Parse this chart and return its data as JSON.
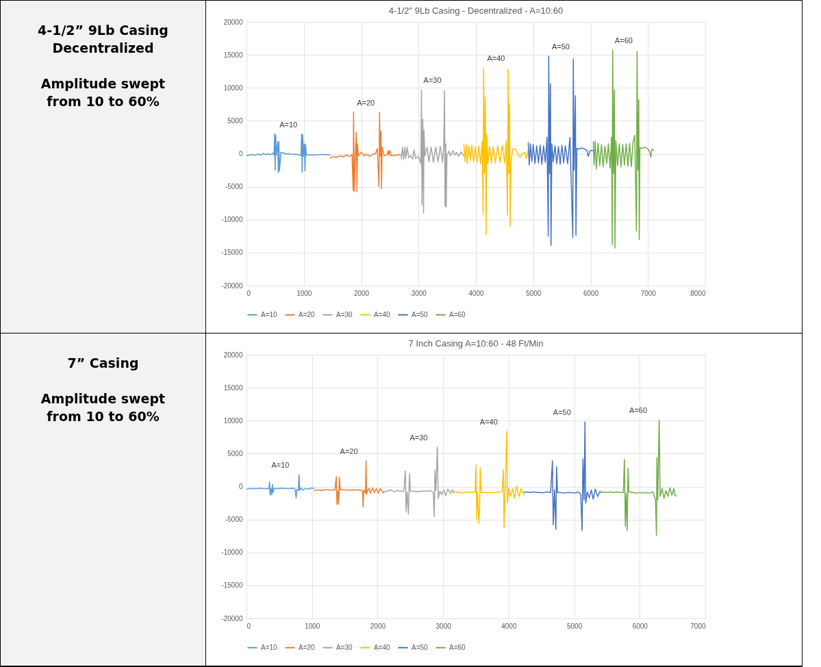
{
  "chart_data": [
    {
      "type": "other",
      "title": "4-1/2” 9Lb Casing",
      "subtitle": "Decentralized",
      "annotations": [
        "Amplitude swept from 10 to 60%"
      ]
    },
    {
      "type": "line",
      "title": "4-1/2\" 9Lb Casing - Decentralized - A=10:60",
      "xlim": [
        0,
        8000
      ],
      "xticks": [
        0,
        1000,
        2000,
        3000,
        4000,
        5000,
        6000,
        7000,
        8000
      ],
      "ylim": [
        -20000,
        20000
      ],
      "yticks": [
        -20000,
        -15000,
        -10000,
        -5000,
        0,
        5000,
        10000,
        15000,
        20000
      ],
      "grid": true,
      "legend": "bottom",
      "series": [
        {
          "name": "A=10",
          "color": "#5b9bd5",
          "x": [
            0,
            50,
            100,
            150,
            200,
            250,
            290,
            330,
            380,
            420,
            460,
            480,
            490,
            500,
            510,
            520,
            545,
            555,
            565,
            575,
            600,
            650,
            700,
            750,
            800,
            850,
            900,
            950,
            960,
            970,
            980,
            995,
            1010,
            1020,
            1030,
            1045,
            1100,
            1200,
            1300,
            1400,
            1460
          ],
          "values": [
            -300,
            -200,
            -100,
            -250,
            -50,
            -200,
            50,
            -150,
            0,
            -150,
            100,
            -200,
            3000,
            -2500,
            2800,
            -200,
            1800,
            -2900,
            1900,
            -2600,
            200,
            100,
            -50,
            0,
            -100,
            -50,
            -150,
            -300,
            3000,
            -2800,
            2900,
            -400,
            1500,
            -2600,
            1400,
            -200,
            -150,
            -200,
            -100,
            -150,
            -150
          ]
        },
        {
          "name": "A=20",
          "color": "#ed7d31",
          "x": [
            1460,
            1500,
            1560,
            1620,
            1680,
            1740,
            1800,
            1840,
            1860,
            1867,
            1880,
            1900,
            1915,
            1925,
            1935,
            1950,
            2000,
            2050,
            2100,
            2150,
            2200,
            2250,
            2280,
            2310,
            2320,
            2330,
            2345,
            2355,
            2365,
            2400,
            2450,
            2470,
            2480,
            2500,
            2520,
            2560,
            2600,
            2650,
            2700
          ],
          "values": [
            -700,
            -400,
            -600,
            -300,
            -500,
            -200,
            -400,
            -100,
            -5600,
            6300,
            -5700,
            300,
            3300,
            -5800,
            1500,
            -300,
            200,
            -300,
            -100,
            -400,
            -100,
            0,
            800,
            -5000,
            6300,
            -400,
            3400,
            -5300,
            1000,
            -300,
            -200,
            500,
            -200,
            500,
            -300,
            -200,
            -300,
            -100,
            -300
          ]
        },
        {
          "name": "A=30",
          "color": "#a5a5a5",
          "x": [
            2700,
            2720,
            2740,
            2760,
            2780,
            2800,
            2830,
            2860,
            2900,
            2920,
            2950,
            3000,
            3040,
            3051,
            3060,
            3075,
            3087,
            3095,
            3110,
            3150,
            3180,
            3220,
            3260,
            3300,
            3340,
            3380,
            3420,
            3440,
            3453,
            3462,
            3475,
            3482,
            3495,
            3530,
            3560,
            3600,
            3630,
            3660,
            3700,
            3740,
            3786
          ],
          "values": [
            -800,
            1000,
            -900,
            1000,
            -700,
            1000,
            -600,
            -300,
            -800,
            600,
            -700,
            -400,
            -1500,
            9700,
            -7700,
            5300,
            -9000,
            3600,
            -300,
            1000,
            -1200,
            1000,
            -1300,
            1000,
            -1200,
            1100,
            -1300,
            1500,
            9600,
            -8000,
            1500,
            -8100,
            -300,
            400,
            -300,
            500,
            -200,
            200,
            -400,
            300,
            -300
          ]
        },
        {
          "name": "A=40",
          "color": "#ffc000",
          "x": [
            3790,
            3810,
            3830,
            3850,
            3880,
            3900,
            3930,
            3960,
            3990,
            4020,
            4050,
            4080,
            4110,
            4125,
            4135,
            4150,
            4165,
            4178,
            4190,
            4210,
            4240,
            4270,
            4300,
            4340,
            4380,
            4420,
            4460,
            4500,
            4530,
            4550,
            4563,
            4575,
            4588,
            4598,
            4610,
            4640,
            4700,
            4740,
            4770,
            4800,
            4850,
            4880,
            4913
          ],
          "values": [
            1500,
            -1200,
            1400,
            -1500,
            1200,
            -1000,
            1300,
            -1200,
            1000,
            -1300,
            1200,
            -1500,
            2000,
            -9200,
            13000,
            -3000,
            8600,
            -12300,
            3000,
            -1500,
            1200,
            -1400,
            1100,
            -1400,
            1200,
            -1300,
            1300,
            -1400,
            2000,
            -9300,
            12800,
            -3000,
            7600,
            -11000,
            -1500,
            700,
            700,
            -200,
            -500,
            -100,
            200,
            -700,
            600
          ]
        },
        {
          "name": "A=50",
          "color": "#4472c4",
          "x": [
            4913,
            4930,
            4950,
            4975,
            5000,
            5030,
            5060,
            5090,
            5120,
            5150,
            5180,
            5210,
            5240,
            5262,
            5270,
            5285,
            5300,
            5310,
            5325,
            5350,
            5380,
            5410,
            5440,
            5470,
            5500,
            5530,
            5560,
            5600,
            5640,
            5690,
            5698,
            5712,
            5735,
            5745,
            5760,
            5800,
            5850,
            5900,
            5940,
            5960,
            5990,
            6048
          ],
          "values": [
            1700,
            -1700,
            1500,
            -1200,
            1400,
            -1500,
            1200,
            -1400,
            1300,
            -1600,
            1200,
            -1300,
            2500,
            -12500,
            14800,
            -3000,
            10600,
            -13900,
            1500,
            -1200,
            1200,
            -1500,
            1100,
            -1600,
            1300,
            -1400,
            1200,
            -1500,
            2500,
            -12700,
            14400,
            -2500,
            8800,
            -12400,
            800,
            700,
            900,
            700,
            400,
            -400,
            500,
            500
          ]
        },
        {
          "name": "A=60",
          "color": "#70ad47",
          "x": [
            6048,
            6060,
            6080,
            6100,
            6130,
            6160,
            6190,
            6220,
            6250,
            6280,
            6310,
            6340,
            6365,
            6378,
            6385,
            6400,
            6415,
            6425,
            6440,
            6470,
            6500,
            6530,
            6560,
            6590,
            6620,
            6650,
            6680,
            6710,
            6740,
            6770,
            6800,
            6810,
            6825,
            6840,
            6849,
            6860,
            6900,
            6950,
            7000,
            7030,
            7050,
            7070,
            7107
          ],
          "values": [
            1800,
            -1700,
            1900,
            -2300,
            1600,
            -1800,
            1400,
            -2000,
            1200,
            -1500,
            1500,
            -2200,
            2500,
            -13800,
            15700,
            -3000,
            9700,
            -14300,
            2000,
            -1800,
            1500,
            -2000,
            1400,
            -1700,
            1500,
            -1900,
            1600,
            -2000,
            1800,
            2800,
            -11700,
            15500,
            -2500,
            8200,
            -13000,
            900,
            800,
            1000,
            700,
            300,
            -500,
            700,
            500
          ]
        }
      ],
      "annotations": [
        "A=10",
        "A=20",
        "A=30",
        "A=40",
        "A=50",
        "A=60"
      ]
    },
    {
      "type": "other",
      "title": "7” Casing",
      "annotations": [
        "Amplitude swept from 10 to 60%"
      ]
    },
    {
      "type": "line",
      "title": "7 Inch Casing A=10:60 - 48 Ft/Min",
      "xlim": [
        0,
        7000
      ],
      "xticks": [
        0,
        1000,
        2000,
        3000,
        4000,
        5000,
        6000,
        7000
      ],
      "ylim": [
        -20000,
        20000
      ],
      "yticks": [
        -20000,
        -15000,
        -10000,
        -5000,
        0,
        5000,
        10000,
        15000,
        20000
      ],
      "grid": true,
      "legend": "bottom",
      "series": [
        {
          "name": "A=10",
          "color": "#5b9bd5",
          "x": [
            0,
            50,
            100,
            150,
            200,
            250,
            300,
            340,
            352,
            360,
            375,
            385,
            395,
            405,
            420,
            480,
            550,
            600,
            650,
            700,
            740,
            757,
            770,
            790,
            802,
            812,
            830,
            860,
            900,
            950,
            990,
            1032
          ],
          "values": [
            -400,
            -300,
            -300,
            -350,
            -250,
            -300,
            -300,
            -350,
            700,
            -1300,
            -300,
            -1300,
            300,
            -900,
            -300,
            -300,
            -250,
            -300,
            -300,
            -250,
            -350,
            -1700,
            -400,
            -600,
            1800,
            -600,
            -200,
            -500,
            -300,
            -400,
            -200,
            -300
          ]
        },
        {
          "name": "A=20",
          "color": "#ed7d31",
          "x": [
            1032,
            1100,
            1150,
            1200,
            1250,
            1300,
            1350,
            1370,
            1380,
            1395,
            1405,
            1418,
            1430,
            1500,
            1560,
            1620,
            1680,
            1740,
            1770,
            1779,
            1790,
            1815,
            1824,
            1832,
            1850,
            1870,
            1890,
            1920,
            1950,
            1980,
            2010,
            2040,
            2070,
            2093
          ],
          "values": [
            -600,
            -500,
            -600,
            -500,
            -500,
            -550,
            -500,
            1500,
            -2700,
            -600,
            -2700,
            1400,
            -500,
            -500,
            -550,
            -500,
            -550,
            -500,
            -700,
            -3100,
            -500,
            -1000,
            3900,
            -1200,
            -500,
            -300,
            -1000,
            -200,
            -900,
            -300,
            -1000,
            -300,
            -700,
            -1000
          ]
        },
        {
          "name": "A=30",
          "color": "#a5a5a5",
          "x": [
            2093,
            2150,
            2200,
            2250,
            2300,
            2350,
            2400,
            2425,
            2435,
            2450,
            2470,
            2487,
            2500,
            2550,
            2600,
            2650,
            2700,
            2750,
            2800,
            2850,
            2865,
            2875,
            2890,
            2912,
            2925,
            2950,
            2980,
            3010,
            3040,
            3070,
            3110,
            3140,
            3160
          ],
          "values": [
            -800,
            -700,
            -500,
            -800,
            -600,
            -700,
            -700,
            2400,
            -3800,
            -800,
            -4200,
            2000,
            -700,
            -700,
            -800,
            -700,
            -700,
            -700,
            -600,
            -900,
            -4600,
            2500,
            -600,
            6000,
            -1800,
            -700,
            -1200,
            -500,
            -1400,
            -400,
            -1000,
            -500,
            -1000
          ]
        },
        {
          "name": "A=40",
          "color": "#ffc000",
          "x": [
            3160,
            3200,
            3250,
            3300,
            3350,
            3400,
            3450,
            3490,
            3500,
            3514,
            3525,
            3545,
            3556,
            3566,
            3580,
            3650,
            3700,
            3750,
            3800,
            3850,
            3900,
            3920,
            3930,
            3945,
            3972,
            3980,
            4000,
            4030,
            4060,
            4090,
            4120,
            4160,
            4190,
            4234
          ],
          "values": [
            -700,
            -900,
            -800,
            -1000,
            -800,
            -900,
            -900,
            -800,
            3300,
            -5000,
            -800,
            -5600,
            -3500,
            2900,
            -900,
            -900,
            -950,
            -900,
            -900,
            -850,
            -800,
            2600,
            -6200,
            -1000,
            8400,
            -2500,
            -300,
            -1500,
            -300,
            -1800,
            0,
            -1500,
            -300,
            -1300
          ]
        },
        {
          "name": "A=50",
          "color": "#4472c4",
          "x": [
            4234,
            4280,
            4330,
            4380,
            4430,
            4480,
            4530,
            4580,
            4640,
            4668,
            4680,
            4700,
            4720,
            4731,
            4745,
            4800,
            4850,
            4900,
            4950,
            5000,
            5060,
            5100,
            5120,
            5133,
            5150,
            5164,
            5175,
            5200,
            5230,
            5260,
            5290,
            5320,
            5360,
            5395
          ],
          "values": [
            -900,
            -800,
            -900,
            -800,
            -900,
            -900,
            -950,
            -800,
            -900,
            3900,
            -5800,
            -500,
            -6500,
            3000,
            -900,
            -900,
            -1000,
            -900,
            -900,
            -1000,
            -800,
            -1200,
            -6700,
            4200,
            -2000,
            9800,
            -2500,
            -800,
            -1700,
            -500,
            -1900,
            -400,
            -1500,
            -700
          ]
        },
        {
          "name": "A=60",
          "color": "#70ad47",
          "x": [
            5395,
            5450,
            5500,
            5550,
            5600,
            5650,
            5700,
            5750,
            5766,
            5780,
            5795,
            5808,
            5822,
            5835,
            5900,
            5950,
            6000,
            6050,
            6100,
            6150,
            6200,
            6240,
            6255,
            6262,
            6275,
            6290,
            6297,
            6310,
            6340,
            6370,
            6400,
            6430,
            6460,
            6490,
            6520,
            6540,
            6559
          ],
          "values": [
            -900,
            -800,
            -900,
            -800,
            -900,
            -800,
            -900,
            -900,
            4100,
            -6000,
            -1000,
            -6700,
            2800,
            -800,
            -900,
            -1000,
            -900,
            -1000,
            -900,
            -1000,
            -800,
            -2000,
            -7400,
            4400,
            -2000,
            6700,
            10100,
            -1500,
            -300,
            -1800,
            -600,
            -1500,
            -200,
            -1300,
            -300,
            -1400,
            -1400
          ]
        }
      ],
      "annotations": [
        "A=10",
        "A=20",
        "A=30",
        "A=40",
        "A=50",
        "A=60"
      ]
    }
  ]
}
